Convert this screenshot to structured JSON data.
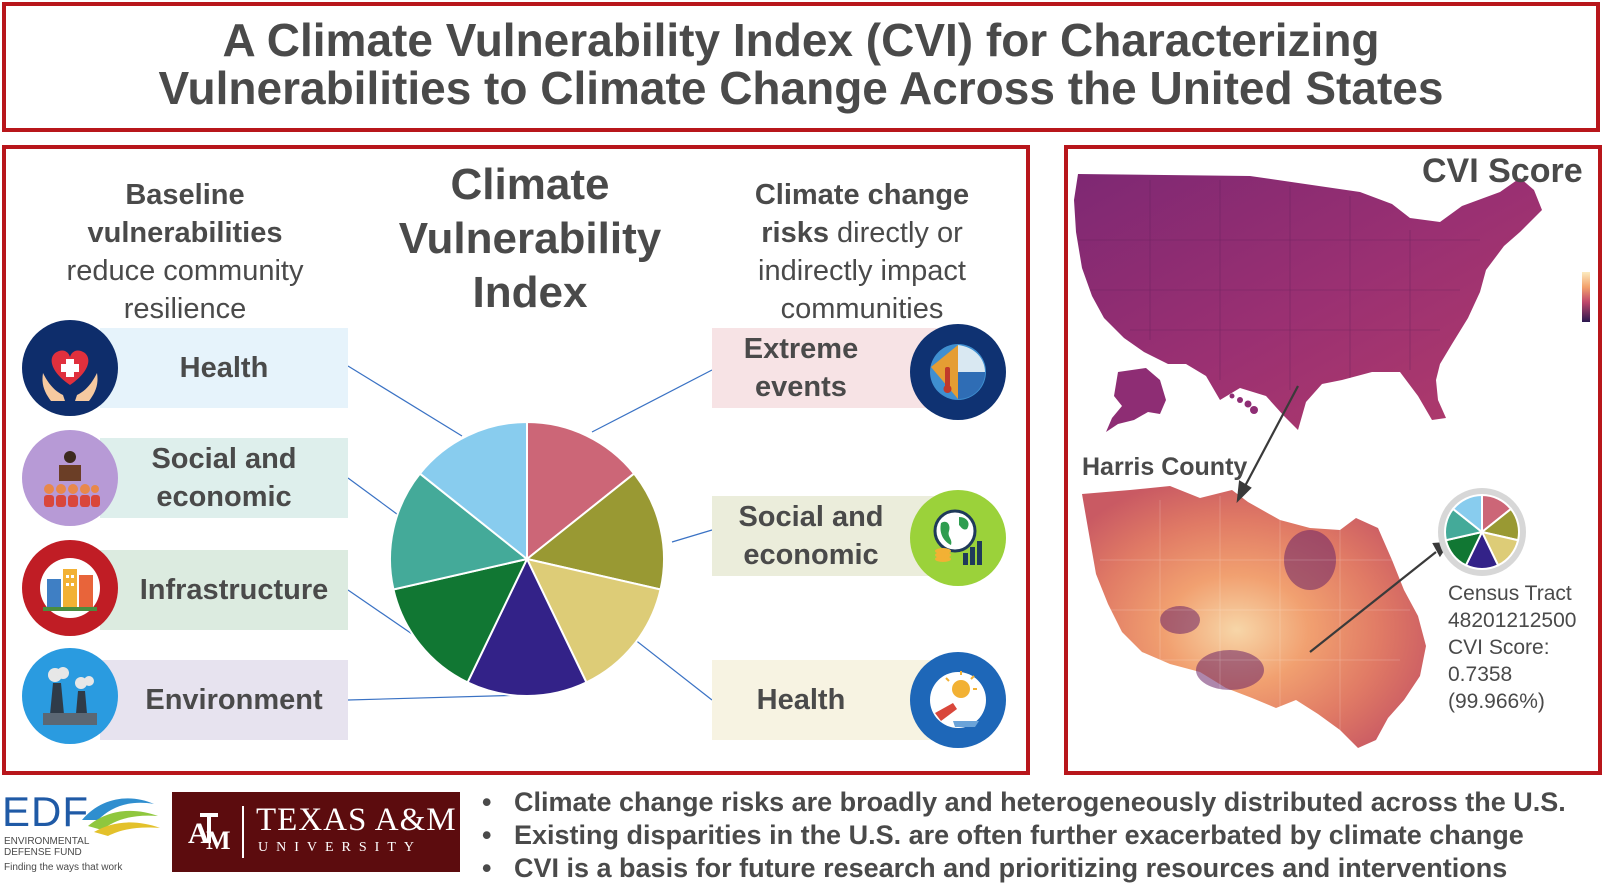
{
  "title": "A Climate Vulnerability Index (CVI) for Characterizing\nVulnerabilities to Climate Change Across the United States",
  "left_panel": {
    "baseline_heading_bold": "Baseline vulnerabilities",
    "baseline_heading_rest": "reduce community resilience",
    "cvi_heading": "Climate Vulnerability Index",
    "risk_heading_bold_1": "Climate change",
    "risk_heading_bold_2": "risks",
    "risk_heading_rest": "directly or indirectly impact communities",
    "baseline_items": [
      {
        "label": "Health",
        "icon": "health-hands-icon",
        "bg": "#e6f3fb"
      },
      {
        "label": "Social and economic",
        "icon": "community-people-icon",
        "bg": "#deefec"
      },
      {
        "label": "Infrastructure",
        "icon": "city-buildings-icon",
        "bg": "#dcebe0"
      },
      {
        "label": "Environment",
        "icon": "factory-smoke-icon",
        "bg": "#e7e3ef"
      }
    ],
    "risk_items": [
      {
        "label": "Extreme events",
        "icon": "extreme-weather-icon",
        "bg": "#f7e3e5"
      },
      {
        "label": "Social and economic",
        "icon": "globe-finance-icon",
        "bg": "#ebeddb"
      },
      {
        "label": "Health",
        "icon": "heat-health-icon",
        "bg": "#f7f3e2"
      }
    ],
    "pie_colors": [
      "#cc6677",
      "#999933",
      "#ddcc77",
      "#332288",
      "#117733",
      "#44aa99",
      "#88ccee"
    ]
  },
  "right_panel": {
    "map_title": "CVI Score",
    "county_label": "Harris County",
    "tract_label": "Census Tract",
    "tract_id": "48201212500",
    "score_label": "CVI Score:",
    "score_value": "0.7358",
    "score_percentile": "(99.966%)"
  },
  "logos": {
    "edf_short": "EDF",
    "edf_name_1": "ENVIRONMENTAL",
    "edf_name_2": "DEFENSE FUND",
    "edf_tagline": "Finding the ways that work",
    "tamu_name": "TEXAS A&M",
    "tamu_sub": "UNIVERSITY"
  },
  "bullets": [
    "Climate change risks are broadly and heterogeneously distributed across the U.S.",
    "Existing disparities in the U.S. are often further exacerbated by climate change",
    "CVI is a basis for future research and prioritizing resources and interventions"
  ]
}
